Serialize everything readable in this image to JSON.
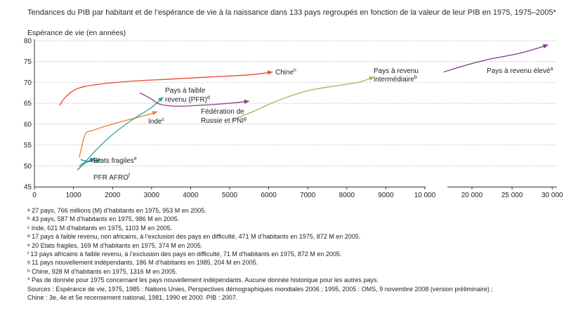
{
  "title": "Tendances du PIB par habitant et de l’espérance de vie à la naissance dans 133 pays regroupés en fonction de la valeur de leur PIB en 1975, 1975–2005*",
  "chart_data": {
    "type": "line",
    "title": "Tendances du PIB par habitant et de l’espérance de vie à la naissance dans 133 pays regroupés en fonction de la valeur de leur PIB en 1975, 1975–2005*",
    "ylabel": "Espérance de vie (en années)",
    "xlabel": "",
    "ylim": [
      45,
      80
    ],
    "yticks": [
      45,
      50,
      55,
      60,
      65,
      70,
      75,
      80
    ],
    "xlim_left": [
      0,
      10000
    ],
    "xticks_left": [
      0,
      1000,
      2000,
      3000,
      4000,
      5000,
      6000,
      7000,
      8000,
      9000,
      10000
    ],
    "xlim_right": [
      16500,
      30500
    ],
    "xticks_right": [
      20000,
      25000,
      30000
    ],
    "xtick_labels": [
      "0",
      "1000",
      "2000",
      "3000",
      "4000",
      "5000",
      "6000",
      "7000",
      "8000",
      "9000",
      "10 000",
      "20 000",
      "25 000",
      "30 000"
    ],
    "grid": "horizontal",
    "series": [
      {
        "name": "Chine",
        "sup": "h",
        "color": "#e8492b",
        "points": [
          [
            650,
            64.5
          ],
          [
            800,
            66.5
          ],
          [
            1100,
            68.5
          ],
          [
            1600,
            69.5
          ],
          [
            2500,
            70.3
          ],
          [
            3500,
            70.8
          ],
          [
            4500,
            71.3
          ],
          [
            5500,
            71.8
          ],
          [
            6100,
            72.5
          ]
        ]
      },
      {
        "name": "Inde",
        "sup": "c",
        "color": "#f07838",
        "points": [
          [
            1150,
            52
          ],
          [
            1300,
            57.5
          ],
          [
            1500,
            58.5
          ],
          [
            2000,
            60
          ],
          [
            2600,
            61.5
          ],
          [
            3000,
            62.5
          ],
          [
            3150,
            63
          ]
        ]
      },
      {
        "name": "Pays à faible revenu (PFR)",
        "sup": "d",
        "color": "#2aa88e",
        "points": [
          [
            1150,
            50
          ],
          [
            1300,
            51
          ],
          [
            1600,
            54
          ],
          [
            2000,
            57.5
          ],
          [
            2500,
            61
          ],
          [
            3000,
            64
          ],
          [
            3300,
            66.5
          ]
        ]
      },
      {
        "name": "Etats fragiles",
        "sup": "e",
        "color": "#1c9a94",
        "points": [
          [
            1180,
            51.5
          ],
          [
            1400,
            51
          ],
          [
            1600,
            51.2
          ],
          [
            1700,
            51.5
          ]
        ]
      },
      {
        "name": "PFR AFRO",
        "sup": "f",
        "color": "#2b6f9e",
        "points": [
          [
            1100,
            49
          ],
          [
            1250,
            50.3
          ],
          [
            1400,
            51.2
          ],
          [
            1550,
            51.8
          ]
        ]
      },
      {
        "name": "Fédération de Russie et PNI",
        "sup": "g",
        "color": "#8a3f86",
        "points": [
          [
            2700,
            67.5
          ],
          [
            3000,
            66
          ],
          [
            3200,
            64.8
          ],
          [
            3600,
            64.3
          ],
          [
            4200,
            64.5
          ],
          [
            5000,
            65
          ],
          [
            5500,
            65.5
          ]
        ]
      },
      {
        "name": "Pays à revenu intermédiaire",
        "sup": "b",
        "color": "#8cc256",
        "points": [
          [
            5050,
            61
          ],
          [
            5600,
            63
          ],
          [
            6200,
            65.5
          ],
          [
            7000,
            68
          ],
          [
            7800,
            69.3
          ],
          [
            8300,
            70
          ],
          [
            8700,
            71.3
          ]
        ]
      },
      {
        "name": "Pays à revenu élevé",
        "sup": "a",
        "color": "#7b3a8a",
        "points": [
          [
            16500,
            72.5
          ],
          [
            19000,
            74
          ],
          [
            22000,
            75.5
          ],
          [
            26000,
            77
          ],
          [
            29500,
            79
          ]
        ]
      }
    ]
  },
  "labels": {
    "chine": "Chine",
    "inde": "Inde",
    "pfr_line1": "Pays à faible",
    "pfr_line2": "revenu (PFR)",
    "etats_fragiles": "Etats fragiles",
    "pfr_afro": "PFR AFRO",
    "russie_line1": "Fédération de",
    "russie_line2": "Russie et PNI",
    "intermediaire_line1": "Pays à revenu",
    "intermediaire_line2": "intermédiaire",
    "eleve": "Pays à revenu élevé"
  },
  "footnotes": [
    {
      "sup": "a",
      "text": "27 pays, 766 millions (M) d’habitants en 1975, 953 M en 2005."
    },
    {
      "sup": "b",
      "text": "43 pays, 587 M d’habitants en 1975, 986 M en 2005."
    },
    {
      "sup": "c",
      "text": "Inde, 621 M d’habitants en 1975, 1103 M en 2005."
    },
    {
      "sup": "d",
      "text": "17 pays à faible revenu, non africains, à l’exclusion des pays en difficulté, 471 M d’habitants en 1975, 872 M en 2005."
    },
    {
      "sup": "e",
      "text": "20 Etats fragiles, 169 M d’habitants en 1975, 374 M en 2005."
    },
    {
      "sup": "f",
      "text": "13 pays africains à faible revenu, à l’exclusion des pays en difficulté, 71 M d’habitants en 1975, 872 M en 2005."
    },
    {
      "sup": "g",
      "text": "11 pays nouvellement indépendants, 186 M d’habitants en 1985, 204 M en 2005."
    },
    {
      "sup": "h",
      "text": "Chine, 928 M d’habitants en 1975, 1316 M en 2005."
    },
    {
      "sup": "",
      "text": "* Pas de donnée pour 1975 concernant les pays nouvellement indépendants. Aucune donnée historique pour les autres pays."
    },
    {
      "sup": "",
      "text": "Sources : Espérance de vie, 1975, 1985 : Nations Unies, Perspectives démographiques mondiales 2006 ; 1995, 2005 : OMS, 9 novembre 2008 (version préliminaire) ;"
    },
    {
      "sup": "",
      "text": "Chine : 3e, 4e et 5e recensement national, 1981, 1990 et 2000. PIB : 2007."
    }
  ]
}
